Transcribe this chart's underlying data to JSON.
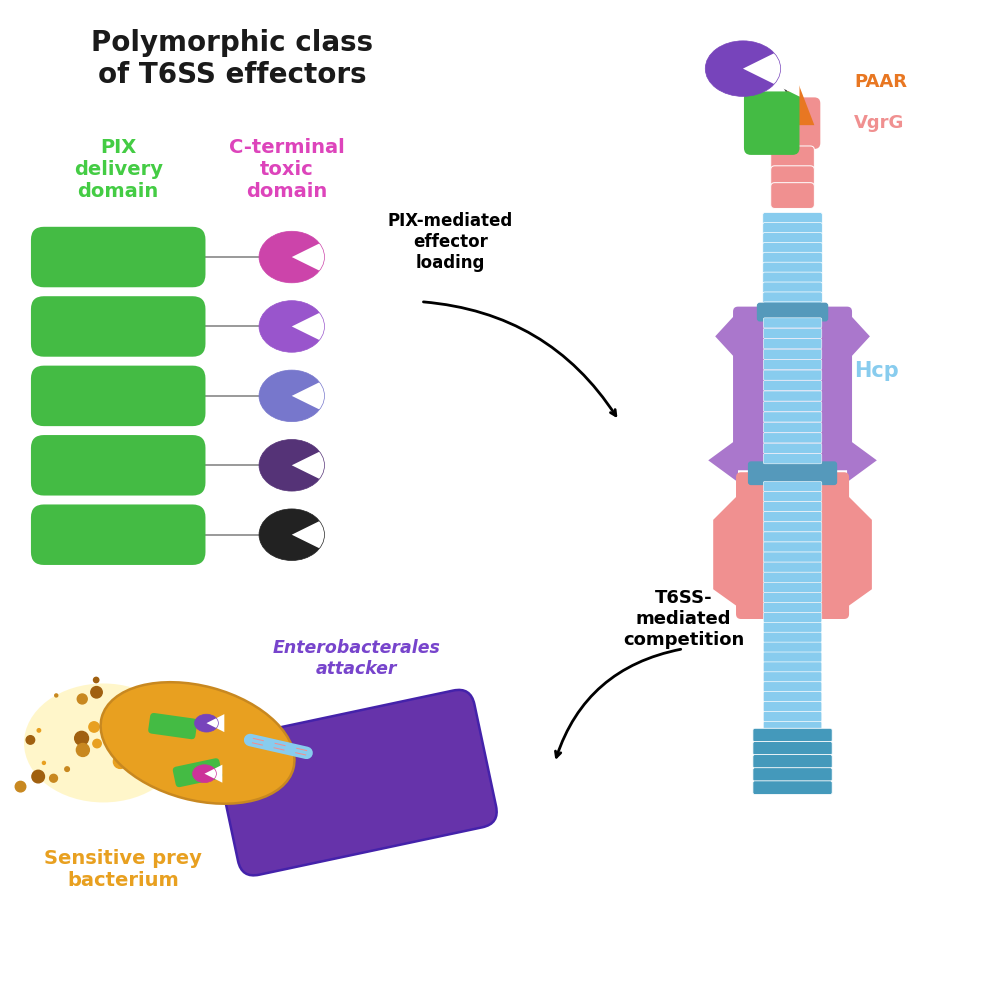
{
  "title": "Polymorphic class\nof T6SS effectors",
  "title_color": "#1a1a1a",
  "title_fontsize": 20,
  "pix_label": "PIX\ndelivery\ndomain",
  "pix_label_color": "#44cc44",
  "cterminal_label": "C-terminal\ntoxic\ndomain",
  "cterminal_label_color": "#dd44bb",
  "green_color": "#44bb44",
  "effector_colors": [
    "#cc44aa",
    "#9955cc",
    "#7777cc",
    "#553377",
    "#222222"
  ],
  "paar_color": "#e87722",
  "vgrg_pink": "#f09090",
  "hcp_color": "#88ccee",
  "hcp_dark": "#5599bb",
  "hcp_label_color": "#88ccee",
  "paar_label_color": "#e87722",
  "vgrg_label_color": "#f09090",
  "pix_mediated_text": "PIX-mediated\neffector\nloading",
  "t6ss_text": "T6SS-\nmediated\ncompetition",
  "enterobacterales_text": "Enterobacterales\nattacker",
  "enterobacterales_color": "#7744cc",
  "sensitive_prey_text": "Sensitive prey\nbacterium",
  "sensitive_prey_color": "#e8a020",
  "bg_color": "#ffffff",
  "purple_effector_color": "#7744bb",
  "sheath_pink": "#f09090",
  "sheath_purple": "#aa77cc",
  "sheath_blue_ring": "#5599bb",
  "baseplate_color": "#4499bb"
}
